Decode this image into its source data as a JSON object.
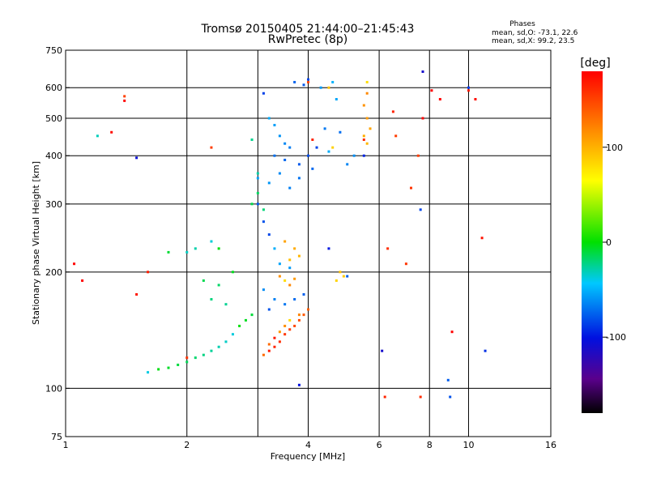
{
  "chart_data": {
    "type": "scatter",
    "title": "Tromsø 20150405 21:44:00–21:45:43",
    "subtitle": "RwPretec (8p)",
    "stats": {
      "heading": "Phases",
      "line1": "mean, sd,O: -73.1, 22.6",
      "line2": "mean, sd,X:  99.2, 23.5"
    },
    "xlabel": "Frequency [MHz]",
    "ylabel": "Stationary phase Virtual Height [km]",
    "x_scale": "log",
    "y_scale": "log",
    "xlim": [
      1,
      16
    ],
    "ylim": [
      75,
      750
    ],
    "x_ticks": [
      1,
      2,
      4,
      6,
      8,
      10,
      16
    ],
    "x_tick_labels": [
      "1",
      "2",
      "4",
      "6",
      "8",
      "10",
      "16"
    ],
    "x_grid": [
      1,
      2,
      3,
      4,
      6,
      8,
      10
    ],
    "y_ticks": [
      75,
      100,
      200,
      300,
      400,
      500,
      600,
      750
    ],
    "y_tick_labels": [
      "75",
      "100",
      "200",
      "300",
      "400",
      "500",
      "600",
      "750"
    ],
    "grid": true,
    "colorbar": {
      "label": "[deg]",
      "range": [
        -180,
        180
      ],
      "ticks": [
        100,
        0,
        -100
      ],
      "tick_labels": [
        "100",
        "0",
        "-100"
      ],
      "colormap": "rainbow (black-purple-blue-cyan-green-yellow-orange-red)"
    },
    "series": [
      {
        "mode": "O",
        "color_value": -73.1,
        "points": [
          [
            3.1,
            580
          ],
          [
            3.2,
            500
          ],
          [
            3.3,
            480
          ],
          [
            3.4,
            450
          ],
          [
            3.5,
            430
          ],
          [
            3.6,
            420
          ],
          [
            3.3,
            400
          ],
          [
            3.5,
            390
          ],
          [
            3.8,
            380
          ],
          [
            4.0,
            400
          ],
          [
            4.2,
            420
          ],
          [
            4.5,
            410
          ],
          [
            3.0,
            350
          ],
          [
            3.2,
            340
          ],
          [
            3.4,
            360
          ],
          [
            3.6,
            330
          ],
          [
            3.8,
            350
          ],
          [
            4.1,
            370
          ],
          [
            3.0,
            300
          ],
          [
            3.1,
            270
          ],
          [
            3.2,
            250
          ],
          [
            3.3,
            230
          ],
          [
            3.4,
            210
          ],
          [
            3.6,
            205
          ],
          [
            3.1,
            180
          ],
          [
            3.3,
            170
          ],
          [
            3.5,
            165
          ],
          [
            3.7,
            170
          ],
          [
            3.9,
            175
          ],
          [
            3.2,
            160
          ],
          [
            4.0,
            630
          ],
          [
            4.6,
            620
          ],
          [
            4.7,
            560
          ],
          [
            4.3,
            600
          ],
          [
            5.2,
            400
          ],
          [
            5.0,
            380
          ],
          [
            4.4,
            470
          ],
          [
            4.8,
            460
          ],
          [
            3.7,
            620
          ],
          [
            3.9,
            610
          ]
        ]
      },
      {
        "mode": "transition",
        "color_value": -20,
        "points": [
          [
            1.6,
            110
          ],
          [
            1.7,
            112
          ],
          [
            1.8,
            113
          ],
          [
            1.9,
            115
          ],
          [
            2.0,
            117
          ],
          [
            2.1,
            120
          ],
          [
            2.2,
            122
          ],
          [
            2.3,
            125
          ],
          [
            2.4,
            128
          ],
          [
            2.5,
            132
          ],
          [
            2.6,
            138
          ],
          [
            2.7,
            145
          ],
          [
            2.8,
            150
          ],
          [
            2.9,
            155
          ],
          [
            2.2,
            190
          ],
          [
            2.4,
            185
          ],
          [
            2.3,
            170
          ],
          [
            2.5,
            165
          ],
          [
            2.1,
            230
          ],
          [
            2.0,
            225
          ],
          [
            2.3,
            240
          ],
          [
            2.4,
            230
          ],
          [
            2.6,
            200
          ],
          [
            1.8,
            225
          ],
          [
            2.9,
            300
          ],
          [
            3.0,
            320
          ],
          [
            3.1,
            290
          ],
          [
            2.9,
            440
          ],
          [
            3.0,
            360
          ],
          [
            1.2,
            450
          ]
        ]
      },
      {
        "mode": "X",
        "color_value": 99.2,
        "points": [
          [
            5.6,
            620
          ],
          [
            5.6,
            580
          ],
          [
            5.5,
            540
          ],
          [
            5.6,
            500
          ],
          [
            5.7,
            470
          ],
          [
            5.5,
            450
          ],
          [
            5.6,
            430
          ],
          [
            4.8,
            200
          ],
          [
            4.9,
            195
          ],
          [
            4.7,
            190
          ],
          [
            3.5,
            190
          ],
          [
            3.6,
            185
          ],
          [
            3.4,
            195
          ],
          [
            3.7,
            192
          ],
          [
            3.5,
            240
          ],
          [
            3.7,
            230
          ],
          [
            3.8,
            220
          ],
          [
            3.6,
            215
          ],
          [
            4.5,
            600
          ],
          [
            4.6,
            420
          ],
          [
            3.6,
            150
          ],
          [
            3.8,
            155
          ],
          [
            3.5,
            145
          ],
          [
            3.4,
            140
          ]
        ]
      },
      {
        "mode": "X-low",
        "color_value": 150,
        "points": [
          [
            3.1,
            122
          ],
          [
            3.2,
            125
          ],
          [
            3.3,
            128
          ],
          [
            3.4,
            132
          ],
          [
            3.5,
            138
          ],
          [
            3.6,
            142
          ],
          [
            3.7,
            145
          ],
          [
            3.8,
            150
          ],
          [
            3.9,
            155
          ],
          [
            4.0,
            160
          ],
          [
            3.2,
            130
          ],
          [
            3.3,
            135
          ],
          [
            4.1,
            440
          ],
          [
            5.5,
            440
          ],
          [
            2.0,
            120
          ],
          [
            2.3,
            420
          ],
          [
            4.0,
            620
          ]
        ]
      },
      {
        "mode": "scattered",
        "color_value": 170,
        "points": [
          [
            1.4,
            570
          ],
          [
            1.4,
            555
          ],
          [
            1.1,
            190
          ],
          [
            1.05,
            210
          ],
          [
            1.3,
            460
          ],
          [
            1.5,
            175
          ],
          [
            1.6,
            200
          ],
          [
            6.2,
            95
          ],
          [
            6.3,
            230
          ],
          [
            7.0,
            210
          ],
          [
            7.5,
            400
          ],
          [
            7.7,
            500
          ],
          [
            8.1,
            590
          ],
          [
            9.1,
            140
          ],
          [
            10.4,
            560
          ],
          [
            10.8,
            245
          ],
          [
            10.0,
            590
          ],
          [
            6.5,
            520
          ],
          [
            7.6,
            95
          ],
          [
            7.2,
            330
          ],
          [
            6.6,
            450
          ],
          [
            8.5,
            560
          ]
        ]
      },
      {
        "mode": "scattered-cool",
        "color_value": -100,
        "points": [
          [
            7.7,
            660
          ],
          [
            8.9,
            105
          ],
          [
            9.0,
            95
          ],
          [
            7.6,
            290
          ],
          [
            10.0,
            600
          ],
          [
            11.0,
            125
          ],
          [
            5.5,
            400
          ],
          [
            4.5,
            230
          ],
          [
            3.8,
            102
          ],
          [
            1.5,
            395
          ],
          [
            6.1,
            125
          ],
          [
            5.0,
            195
          ]
        ]
      }
    ]
  }
}
